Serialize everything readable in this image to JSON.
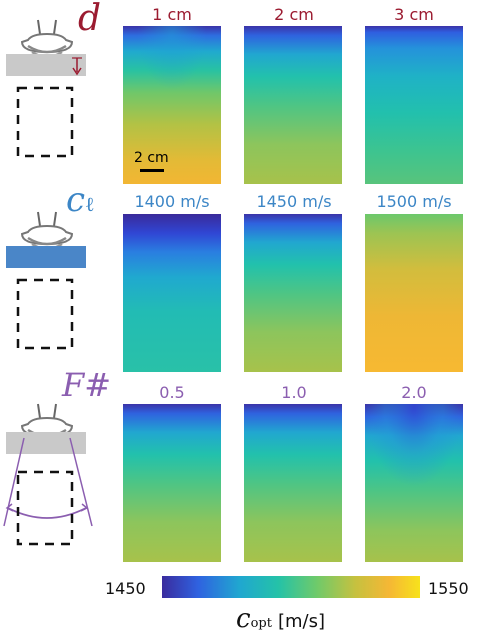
{
  "colors": {
    "row1": "#9b1b30",
    "row2": "#3c86c6",
    "row3": "#8b5eb0",
    "colormap": [
      "#3a2c9e",
      "#2f62e0",
      "#20a7d0",
      "#24c2a8",
      "#6fca6a",
      "#c6c13f",
      "#f5b735",
      "#f7e21c"
    ]
  },
  "rows": [
    {
      "symbol": "d",
      "color": "#9b1b30",
      "labels": [
        "1 cm",
        "2 cm",
        "3 cm"
      ],
      "scale_bar": "2 cm"
    },
    {
      "symbol": "c",
      "symbol_sub": "ℓ",
      "color": "#3c86c6",
      "labels": [
        "1400 m/s",
        "1450 m/s",
        "1500 m/s"
      ]
    },
    {
      "symbol": "F#",
      "color": "#8b5eb0",
      "labels": [
        "0.5",
        "1.0",
        "2.0"
      ]
    }
  ],
  "colorbar": {
    "min_label": "1450",
    "max_label": "1550",
    "title_symbol": "c",
    "title_sub": "opt",
    "title_unit": "[m/s]"
  }
}
